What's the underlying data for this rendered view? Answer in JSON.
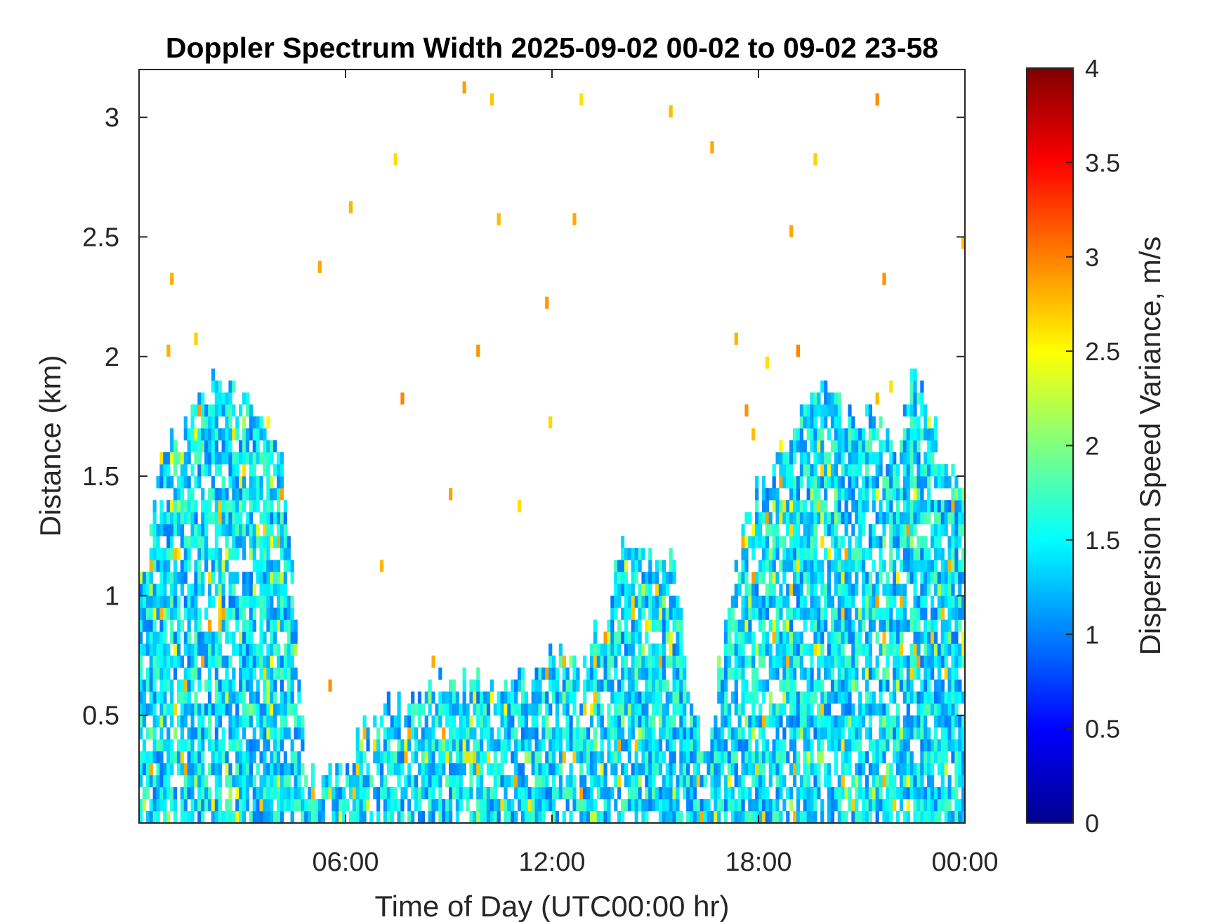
{
  "chart_data": {
    "type": "heatmap",
    "title": "Doppler Spectrum Width 2025-09-02 00-02 to 09-02 23-58",
    "xlabel": "Time of Day (UTC00:00 hr)",
    "ylabel": "Distance (km)",
    "colorbar_label": "Dispersion Speed Variance, m/s",
    "xlim_hours": [
      0,
      24
    ],
    "ylim": [
      0.05,
      3.2
    ],
    "clim": [
      0,
      4
    ],
    "colormap": "jet",
    "x_ticks": [
      {
        "value": 6,
        "label": "06:00"
      },
      {
        "value": 12,
        "label": "12:00"
      },
      {
        "value": 18,
        "label": "18:00"
      },
      {
        "value": 24,
        "label": "00:00"
      }
    ],
    "y_ticks": [
      {
        "value": 0.5,
        "label": "0.5"
      },
      {
        "value": 1,
        "label": "1"
      },
      {
        "value": 1.5,
        "label": "1.5"
      },
      {
        "value": 2,
        "label": "2"
      },
      {
        "value": 2.5,
        "label": "2.5"
      },
      {
        "value": 3,
        "label": "3"
      }
    ],
    "colorbar_ticks": [
      {
        "value": 0,
        "label": "0"
      },
      {
        "value": 0.5,
        "label": "0.5"
      },
      {
        "value": 1,
        "label": "1"
      },
      {
        "value": 1.5,
        "label": "1.5"
      },
      {
        "value": 2,
        "label": "2"
      },
      {
        "value": 2.5,
        "label": "2.5"
      },
      {
        "value": 3,
        "label": "3"
      },
      {
        "value": 3.5,
        "label": "3.5"
      },
      {
        "value": 4,
        "label": "4"
      }
    ],
    "echo_top_profile": {
      "hours": [
        0.0,
        0.3,
        0.6,
        1.0,
        1.5,
        2.0,
        2.5,
        3.0,
        3.5,
        4.0,
        4.3,
        4.6,
        4.8,
        5.0,
        5.5,
        6.0,
        6.3,
        7.0,
        8.0,
        9.0,
        10.0,
        11.0,
        12.0,
        12.5,
        13.0,
        13.5,
        14.0,
        14.5,
        15.0,
        15.5,
        16.0,
        16.5,
        17.0,
        17.5,
        18.0,
        18.5,
        19.0,
        19.5,
        20.0,
        20.5,
        21.0,
        21.5,
        22.0,
        22.5,
        23.0,
        23.5,
        24.0
      ],
      "top_km": [
        1.0,
        1.2,
        1.55,
        1.6,
        1.7,
        1.85,
        1.9,
        1.8,
        1.75,
        1.6,
        1.4,
        0.8,
        0.3,
        0.2,
        0.25,
        0.2,
        0.35,
        0.5,
        0.55,
        0.6,
        0.6,
        0.65,
        0.7,
        0.7,
        0.75,
        0.85,
        1.15,
        1.2,
        1.1,
        1.2,
        0.5,
        0.3,
        0.8,
        1.2,
        1.4,
        1.55,
        1.7,
        1.85,
        1.9,
        1.75,
        1.7,
        1.8,
        1.6,
        1.9,
        1.75,
        1.5,
        1.4
      ],
      "main_value_m_s": 1.4
    }
  }
}
